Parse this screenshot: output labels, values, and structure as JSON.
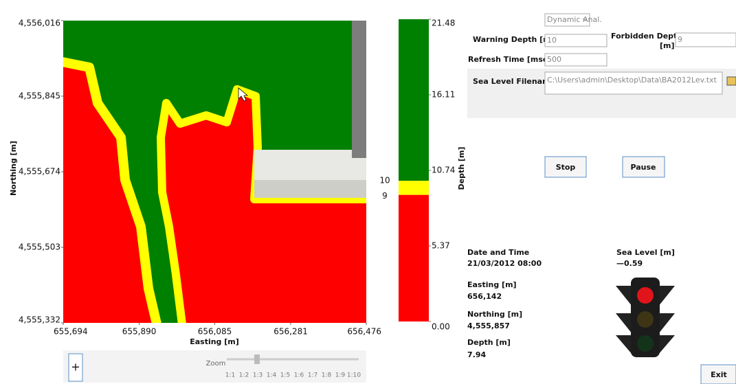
{
  "map": {
    "y_axis_label": "Northing [m]",
    "x_axis_label": "Easting [m]",
    "xlim": [
      655694,
      656476
    ],
    "xticks": [
      {
        "value": 655694,
        "label": "655,694"
      },
      {
        "value": 655890,
        "label": "655,890"
      },
      {
        "value": 656085,
        "label": "656,085"
      },
      {
        "value": 656281,
        "label": "656,281"
      },
      {
        "value": 656476,
        "label": "656,476"
      }
    ],
    "ylim": [
      4555332,
      4556016
    ],
    "yticks": [
      {
        "value": 4555332,
        "label": "4,555,332"
      },
      {
        "value": 4555503,
        "label": "4,555,503"
      },
      {
        "value": 4555674,
        "label": "4,555,674"
      },
      {
        "value": 4555845,
        "label": "4,555,845"
      },
      {
        "value": 4556016,
        "label": "4,556,016"
      }
    ]
  },
  "colorbar": {
    "axis_label": "Depth [m]",
    "lim": [
      0,
      21.48
    ],
    "ticks": [
      {
        "value": 0,
        "label": "0.00"
      },
      5.37,
      10.74,
      16.11,
      21.48
    ],
    "colors": {
      "deep": "#008000",
      "warning": "#ffff00",
      "forbidden": "#ff0000"
    }
  },
  "controls": {
    "mode": "Dynamic Anal.",
    "warning_depth_label": "Warning Depth [m]",
    "warning_depth": 10,
    "forbidden_depth_label": "Forbidden Depth",
    "forbidden_depth_unit": "[m]",
    "forbidden_depth": 9,
    "refresh_label": "Refresh Time [msec]",
    "refresh": "500",
    "filename_label": "Sea Level Filename",
    "filename": "C:\\Users\\admin\\Desktop\\Data\\BA2012Lev.txt",
    "stop": "Stop",
    "pause": "Pause",
    "exit": "Exit"
  },
  "info": {
    "date_label": "Date and Time",
    "date": "21/03/2012 08:00",
    "easting_label": "Easting [m]",
    "easting": "656,142",
    "northing_label": "Northing [m]",
    "northing": "4,555,857",
    "depth_label": "Depth [m]",
    "depth": "7.94",
    "sea_level_label": "Sea Level [m]",
    "sea_level": "—0.59"
  },
  "zoom": {
    "label": "Zoom",
    "plus": "+",
    "levels": [
      "1:1",
      "1:2",
      "1:3",
      "1:4",
      "1:5",
      "1:6",
      "1:7",
      "1:8",
      "1:9",
      "1:10"
    ]
  }
}
